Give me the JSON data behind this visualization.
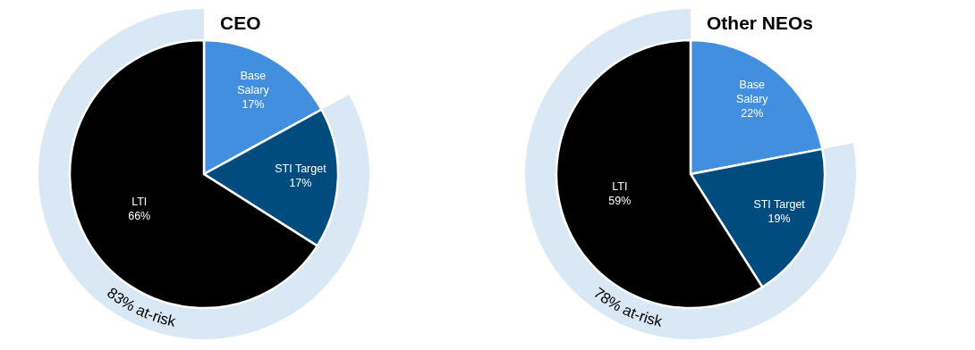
{
  "chart_data": [
    {
      "type": "pie",
      "title": "CEO",
      "categories": [
        "Base Salary",
        "STI Target",
        "LTI"
      ],
      "values": [
        17,
        17,
        66
      ],
      "colors": [
        "#418fde",
        "#004c7f",
        "#000000"
      ],
      "value_labels": [
        "17%",
        "17%",
        "66%"
      ],
      "annotations": [
        "83% at-risk"
      ]
    },
    {
      "type": "pie",
      "title": "Other NEOs",
      "categories": [
        "Base Salary",
        "STI Target",
        "LTI"
      ],
      "values": [
        22,
        19,
        59
      ],
      "colors": [
        "#418fde",
        "#004c7f",
        "#000000"
      ],
      "value_labels": [
        "22%",
        "19%",
        "59%"
      ],
      "annotations": [
        "78% at-risk"
      ]
    }
  ]
}
